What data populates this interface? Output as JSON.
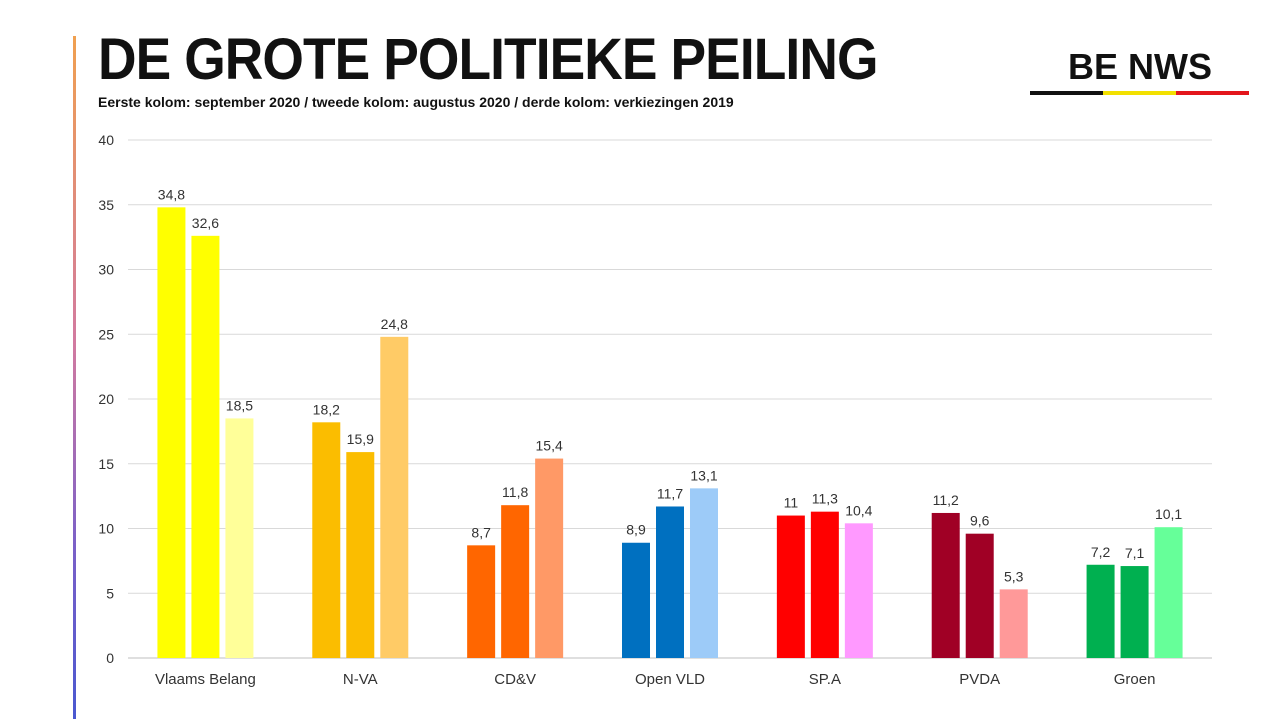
{
  "header": {
    "title": "DE GROTE POLITIEKE PEILING",
    "subtitle": "Eerste kolom: september 2020 / tweede kolom: augustus 2020 / derde kolom: verkiezingen 2019",
    "logo": "BE NWS",
    "logo_colors": [
      "#111111",
      "#f2e000",
      "#e3161c"
    ]
  },
  "chart_data": {
    "type": "bar",
    "title": "DE GROTE POLITIEKE PEILING",
    "xlabel": "",
    "ylabel": "",
    "ylim": [
      0,
      40
    ],
    "yticks": [
      0,
      5,
      10,
      15,
      20,
      25,
      30,
      35,
      40
    ],
    "grid": true,
    "categories": [
      "Vlaams Belang",
      "N-VA",
      "CD&V",
      "Open VLD",
      "SP.A",
      "PVDA",
      "Groen"
    ],
    "series": [
      {
        "name": "september 2020",
        "values": [
          34.8,
          18.2,
          8.7,
          8.9,
          11,
          11.2,
          7.2
        ],
        "labels": [
          "34,8",
          "18,2",
          "8,7",
          "8,9",
          "11",
          "11,2",
          "7,2"
        ]
      },
      {
        "name": "augustus 2020",
        "values": [
          32.6,
          15.9,
          11.8,
          11.7,
          11.3,
          9.6,
          7.1
        ],
        "labels": [
          "32,6",
          "15,9",
          "11,8",
          "11,7",
          "11,3",
          "9,6",
          "7,1"
        ]
      },
      {
        "name": "verkiezingen 2019",
        "values": [
          18.5,
          24.8,
          15.4,
          13.1,
          10.4,
          5.3,
          10.1
        ],
        "labels": [
          "18,5",
          "24,8",
          "15,4",
          "13,1",
          "10,4",
          "5,3",
          "10,1"
        ]
      }
    ],
    "colors": [
      [
        "#ffff00",
        "#ffff00",
        "#ffff99"
      ],
      [
        "#fbbd00",
        "#fbbd00",
        "#ffcb66"
      ],
      [
        "#ff6600",
        "#ff6600",
        "#ff9966"
      ],
      [
        "#0070c0",
        "#0070c0",
        "#9dcbf8"
      ],
      [
        "#ff0000",
        "#ff0000",
        "#ff99ff"
      ],
      [
        "#a00025",
        "#a00025",
        "#ff9999"
      ],
      [
        "#00b050",
        "#00b050",
        "#66ff99"
      ]
    ]
  }
}
